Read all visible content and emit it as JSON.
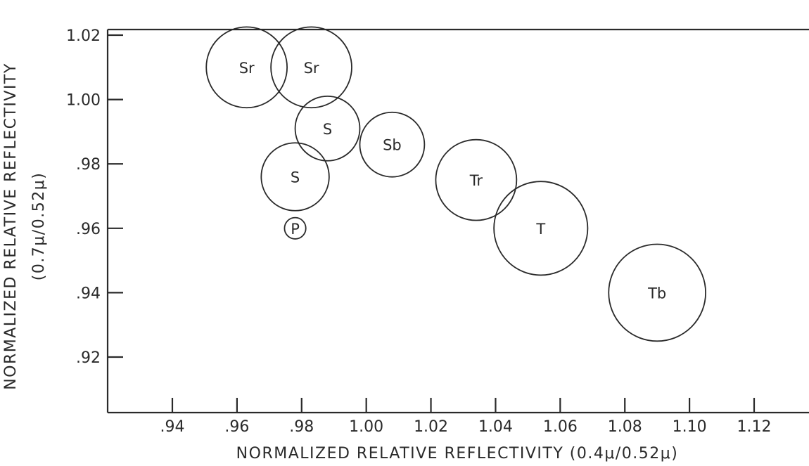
{
  "chart_data": {
    "type": "scatter",
    "title": "",
    "xlabel": "NORMALIZED RELATIVE REFLECTIVITY (0.4μ/0.52μ)",
    "ylabel_line1": "NORMALIZED RELATIVE REFLECTIVITY",
    "ylabel_line2": "(0.7μ/0.52μ)",
    "xlim": [
      0.92,
      1.14
    ],
    "ylim": [
      0.9,
      1.024
    ],
    "x_ticks": [
      0.94,
      0.96,
      0.98,
      1.0,
      1.02,
      1.04,
      1.06,
      1.08,
      1.1,
      1.12
    ],
    "x_tick_labels": [
      ".94",
      ".96",
      ".98",
      "1.00",
      "1.02",
      "1.04",
      "1.06",
      "1.08",
      "1.10",
      "1.12"
    ],
    "y_ticks": [
      0.92,
      0.94,
      0.96,
      0.98,
      1.0,
      1.02
    ],
    "y_tick_labels": [
      ".92",
      ".94",
      ".96",
      ".98",
      "1.00",
      "1.02"
    ],
    "grid": false,
    "points": [
      {
        "label": "Sr",
        "x": 0.963,
        "y": 1.01,
        "r": 0.0125
      },
      {
        "label": "Sr",
        "x": 0.983,
        "y": 1.01,
        "r": 0.0125
      },
      {
        "label": "S",
        "x": 0.988,
        "y": 0.991,
        "r": 0.01
      },
      {
        "label": "Sb",
        "x": 1.008,
        "y": 0.986,
        "r": 0.01
      },
      {
        "label": "S",
        "x": 0.978,
        "y": 0.976,
        "r": 0.0105
      },
      {
        "label": "P",
        "x": 0.978,
        "y": 0.96,
        "r": 0.0033
      },
      {
        "label": "Tr",
        "x": 1.034,
        "y": 0.975,
        "r": 0.0125
      },
      {
        "label": "T",
        "x": 1.054,
        "y": 0.96,
        "r": 0.0145
      },
      {
        "label": "Tb",
        "x": 1.09,
        "y": 0.94,
        "r": 0.015
      }
    ]
  }
}
